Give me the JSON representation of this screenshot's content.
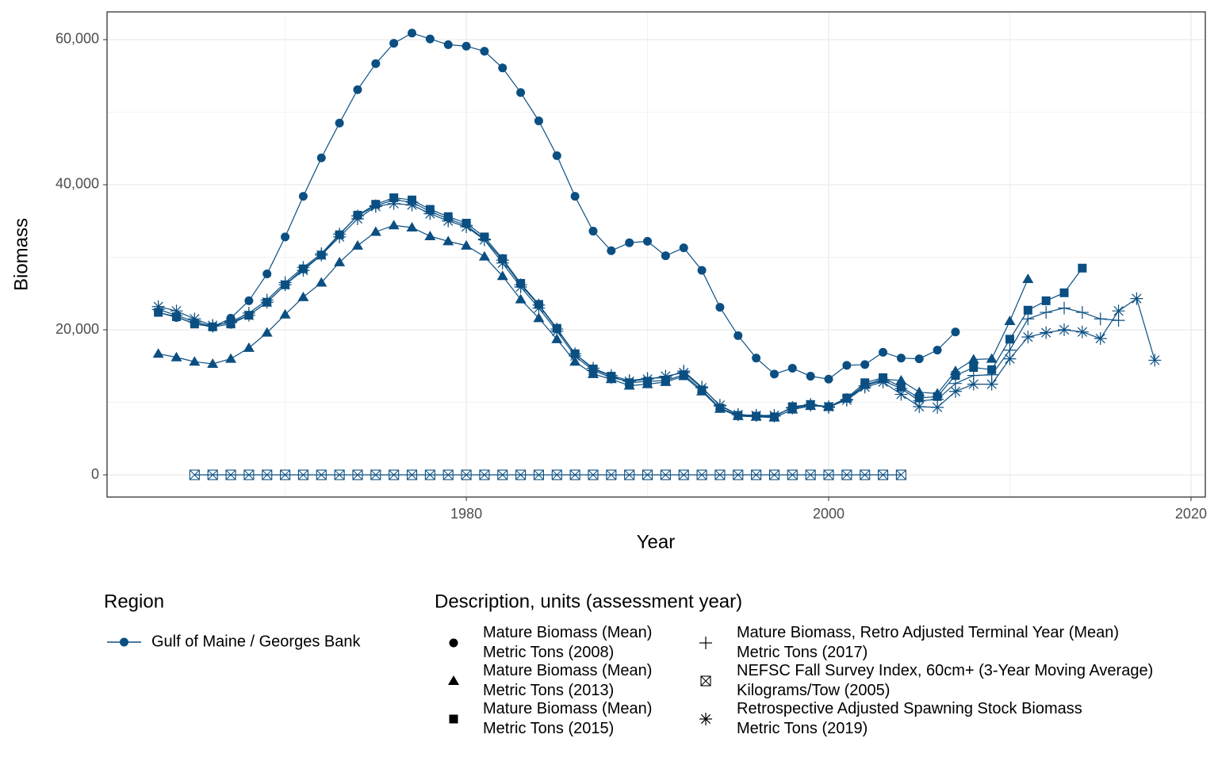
{
  "chart_data": {
    "type": "line",
    "x_label": "Year",
    "y_label": "Biomass",
    "xlim": [
      1960.17,
      2020.79
    ],
    "xticks": [
      1980,
      2000,
      2020
    ],
    "ylim": [
      -3060,
      63825
    ],
    "yticks": [
      0,
      {
        "value": 20000,
        "label": "20,000"
      },
      {
        "value": 40000,
        "label": "40,000"
      },
      {
        "value": 60000,
        "label": "60,000"
      }
    ],
    "grid": true,
    "region_title": "Region",
    "region": {
      "name": "Gulf of Maine / Georges Bank",
      "color": "#0b4f82"
    },
    "legend_title": "Description, units (assessment year)",
    "series": [
      {
        "name": "Mature Biomass (Mean)\nMetric Tons (2008)",
        "marker": "circle",
        "color": "#0b4f82",
        "x": [
          1963,
          1964,
          1965,
          1966,
          1967,
          1968,
          1969,
          1970,
          1971,
          1972,
          1973,
          1974,
          1975,
          1976,
          1977,
          1978,
          1979,
          1980,
          1981,
          1982,
          1983,
          1984,
          1985,
          1986,
          1987,
          1988,
          1989,
          1990,
          1991,
          1992,
          1993,
          1994,
          1995,
          1996,
          1997,
          1998,
          1999,
          2000,
          2001,
          2002,
          2003,
          2004,
          2005,
          2006,
          2007
        ],
        "values": [
          22400,
          21700,
          20900,
          20400,
          21600,
          24000,
          27700,
          32800,
          38400,
          43700,
          48500,
          53100,
          56700,
          59500,
          60900,
          60100,
          59300,
          59100,
          58400,
          56100,
          52700,
          48800,
          44000,
          38400,
          33600,
          30900,
          32000,
          32200,
          30200,
          31300,
          28200,
          23100,
          19200,
          16100,
          13900,
          14700,
          13600,
          13200,
          15100,
          15200,
          16900,
          16100,
          16000,
          17200,
          19700
        ]
      },
      {
        "name": "Mature Biomass (Mean)\nMetric Tons (2013)",
        "marker": "triangle",
        "color": "#0b4f82",
        "x": [
          1963,
          1964,
          1965,
          1966,
          1967,
          1968,
          1969,
          1970,
          1971,
          1972,
          1973,
          1974,
          1975,
          1976,
          1977,
          1978,
          1979,
          1980,
          1981,
          1982,
          1983,
          1984,
          1985,
          1986,
          1987,
          1988,
          1989,
          1990,
          1991,
          1992,
          1993,
          1994,
          1995,
          1996,
          1997,
          1998,
          1999,
          2000,
          2001,
          2002,
          2003,
          2004,
          2005,
          2006,
          2007,
          2008,
          2009,
          2010,
          2011
        ],
        "values": [
          16700,
          16200,
          15600,
          15300,
          16000,
          17500,
          19600,
          22100,
          24500,
          26500,
          29300,
          31600,
          33500,
          34400,
          34100,
          32900,
          32200,
          31600,
          30100,
          27400,
          24200,
          21600,
          18700,
          15600,
          13900,
          13200,
          12300,
          12500,
          12800,
          13600,
          11500,
          9100,
          8100,
          8000,
          7900,
          9000,
          9500,
          9400,
          10500,
          12400,
          13200,
          13000,
          11400,
          11200,
          14300,
          15900,
          16000,
          21200,
          27000
        ]
      },
      {
        "name": "Mature Biomass (Mean)\nMetric Tons (2015)",
        "marker": "square",
        "color": "#0b4f82",
        "x": [
          1963,
          1964,
          1965,
          1966,
          1967,
          1968,
          1969,
          1970,
          1971,
          1972,
          1973,
          1974,
          1975,
          1976,
          1977,
          1978,
          1979,
          1980,
          1981,
          1982,
          1983,
          1984,
          1985,
          1986,
          1987,
          1988,
          1989,
          1990,
          1991,
          1992,
          1993,
          1994,
          1995,
          1996,
          1997,
          1998,
          1999,
          2000,
          2001,
          2002,
          2003,
          2004,
          2005,
          2006,
          2007,
          2008,
          2009,
          2010,
          2011,
          2012,
          2013,
          2014
        ],
        "values": [
          22400,
          21800,
          20800,
          20400,
          20800,
          22000,
          23800,
          26200,
          28400,
          30300,
          33100,
          35800,
          37300,
          38200,
          37900,
          36600,
          35600,
          34700,
          32800,
          29800,
          26400,
          23500,
          20200,
          16700,
          14600,
          13600,
          12700,
          12900,
          13000,
          13800,
          11700,
          9200,
          8200,
          8100,
          8000,
          9400,
          9700,
          9400,
          10600,
          12700,
          13400,
          12100,
          10600,
          10800,
          13700,
          14800,
          14500,
          18700,
          22700,
          24000,
          25100,
          28500
        ]
      },
      {
        "name": "Mature Biomass, Retro Adjusted Terminal Year (Mean)\nMetric Tons (2017)",
        "marker": "plus",
        "color": "#0b4f82",
        "x": [
          1963,
          1964,
          1965,
          1966,
          1967,
          1968,
          1969,
          1970,
          1971,
          1972,
          1973,
          1974,
          1975,
          1976,
          1977,
          1978,
          1979,
          1980,
          1981,
          1982,
          1983,
          1984,
          1985,
          1986,
          1987,
          1988,
          1989,
          1990,
          1991,
          1992,
          1993,
          1994,
          1995,
          1996,
          1997,
          1998,
          1999,
          2000,
          2001,
          2002,
          2003,
          2004,
          2005,
          2006,
          2007,
          2008,
          2009,
          2010,
          2011,
          2012,
          2013,
          2014,
          2015,
          2016
        ],
        "values": [
          22800,
          22000,
          21100,
          20500,
          21100,
          22300,
          24100,
          26500,
          28600,
          30500,
          33200,
          35700,
          37100,
          37900,
          37600,
          36300,
          35300,
          34400,
          32500,
          29600,
          26200,
          23400,
          20100,
          16700,
          14700,
          13700,
          13000,
          13300,
          13400,
          14300,
          12100,
          9500,
          8300,
          8200,
          8100,
          9300,
          9700,
          9300,
          10400,
          12300,
          13000,
          11900,
          10200,
          10400,
          12600,
          13700,
          13800,
          17200,
          21500,
          22400,
          23000,
          22400,
          21500,
          21300
        ]
      },
      {
        "name": "NEFSC Fall Survey Index, 60cm+ (3-Year Moving Average)\nKilograms/Tow (2005)",
        "marker": "boxx",
        "color": "#0b4f82",
        "x": [
          1965,
          1966,
          1967,
          1968,
          1969,
          1970,
          1971,
          1972,
          1973,
          1974,
          1975,
          1976,
          1977,
          1978,
          1979,
          1980,
          1981,
          1982,
          1983,
          1984,
          1985,
          1986,
          1987,
          1988,
          1989,
          1990,
          1991,
          1992,
          1993,
          1994,
          1995,
          1996,
          1997,
          1998,
          1999,
          2000,
          2001,
          2002,
          2003,
          2004
        ],
        "values": [
          0,
          0,
          0,
          0,
          0,
          0,
          0,
          0,
          0,
          0,
          0,
          0,
          0,
          0,
          0,
          0,
          0,
          0,
          0,
          0,
          0,
          0,
          0,
          0,
          0,
          0,
          0,
          0,
          0,
          0,
          0,
          0,
          0,
          0,
          0,
          0,
          0,
          0,
          0,
          0
        ]
      },
      {
        "name": "Retrospective Adjusted Spawning Stock Biomass\nMetric Tons (2019)",
        "marker": "asterisk",
        "color": "#0b4f82",
        "x": [
          1963,
          1964,
          1965,
          1966,
          1967,
          1968,
          1969,
          1970,
          1971,
          1972,
          1973,
          1974,
          1975,
          1976,
          1977,
          1978,
          1979,
          1980,
          1981,
          1982,
          1983,
          1984,
          1985,
          1986,
          1987,
          1988,
          1989,
          1990,
          1991,
          1992,
          1993,
          1994,
          1995,
          1996,
          1997,
          1998,
          1999,
          2000,
          2001,
          2002,
          2003,
          2004,
          2005,
          2006,
          2007,
          2008,
          2009,
          2010,
          2011,
          2012,
          2013,
          2014,
          2015,
          2016,
          2017,
          2018
        ],
        "values": [
          23200,
          22600,
          21500,
          20600,
          21000,
          22000,
          23800,
          26200,
          28200,
          30300,
          32800,
          35300,
          37000,
          37400,
          37200,
          36000,
          35000,
          34200,
          32400,
          29200,
          25900,
          23000,
          19800,
          16400,
          14400,
          13400,
          12900,
          13200,
          13600,
          14100,
          12000,
          9600,
          8300,
          8200,
          8200,
          9200,
          9600,
          9400,
          10300,
          12100,
          12800,
          11100,
          9400,
          9300,
          11500,
          12500,
          12500,
          16000,
          19000,
          19600,
          20000,
          19700,
          18800,
          22600,
          24300,
          15800
        ]
      }
    ]
  }
}
